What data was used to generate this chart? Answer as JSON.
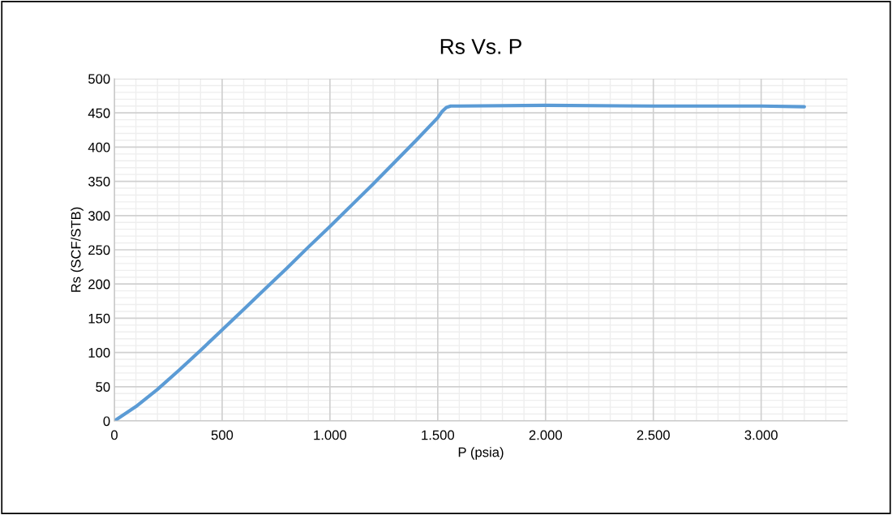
{
  "chart_data": {
    "type": "line",
    "title": "Rs Vs. P",
    "xlabel": "P (psia)",
    "ylabel": "Rs (SCF/STB)",
    "x": [
      0,
      100,
      200,
      300,
      400,
      500,
      600,
      700,
      800,
      900,
      1000,
      1100,
      1200,
      1300,
      1400,
      1500,
      1520,
      1540,
      1560,
      1600,
      2000,
      2500,
      3000,
      3200
    ],
    "series": [
      {
        "color": "#5b9bd5",
        "values": [
          0,
          21,
          46,
          74,
          103,
          133,
          163,
          193,
          223,
          254,
          284,
          315,
          346,
          378,
          410,
          443,
          452,
          458,
          460,
          460,
          461,
          460,
          460,
          459
        ]
      }
    ],
    "xlim": [
      0,
      3400
    ],
    "xticks": [
      0,
      {
        "value": 100,
        "label": null
      },
      {
        "value": 200,
        "label": null
      },
      {
        "value": 300,
        "label": null
      },
      {
        "value": 400,
        "label": null
      },
      500,
      {
        "value": 600,
        "label": null
      },
      {
        "value": 700,
        "label": null
      },
      {
        "value": 800,
        "label": null
      },
      {
        "value": 900,
        "label": null
      },
      {
        "value": 1000,
        "label": "1.000"
      },
      {
        "value": 1100,
        "label": null
      },
      {
        "value": 1200,
        "label": null
      },
      {
        "value": 1300,
        "label": null
      },
      {
        "value": 1400,
        "label": null
      },
      {
        "value": 1500,
        "label": "1.500"
      },
      {
        "value": 1600,
        "label": null
      },
      {
        "value": 1700,
        "label": null
      },
      {
        "value": 1800,
        "label": null
      },
      {
        "value": 1900,
        "label": null
      },
      {
        "value": 2000,
        "label": "2.000"
      },
      {
        "value": 2100,
        "label": null
      },
      {
        "value": 2200,
        "label": null
      },
      {
        "value": 2300,
        "label": null
      },
      {
        "value": 2400,
        "label": null
      },
      {
        "value": 2500,
        "label": "2.500"
      },
      {
        "value": 2600,
        "label": null
      },
      {
        "value": 2700,
        "label": null
      },
      {
        "value": 2800,
        "label": null
      },
      {
        "value": 2900,
        "label": null
      },
      {
        "value": 3000,
        "label": "3.000"
      },
      {
        "value": 3100,
        "label": null
      },
      {
        "value": 3200,
        "label": null
      },
      {
        "value": 3300,
        "label": null
      },
      {
        "value": 3400,
        "label": null
      }
    ],
    "ylim": [
      0,
      500
    ],
    "yticks": [
      0,
      {
        "value": 10,
        "label": null
      },
      {
        "value": 20,
        "label": null
      },
      {
        "value": 30,
        "label": null
      },
      {
        "value": 40,
        "label": null
      },
      50,
      {
        "value": 60,
        "label": null
      },
      {
        "value": 70,
        "label": null
      },
      {
        "value": 80,
        "label": null
      },
      {
        "value": 90,
        "label": null
      },
      100,
      {
        "value": 110,
        "label": null
      },
      {
        "value": 120,
        "label": null
      },
      {
        "value": 130,
        "label": null
      },
      {
        "value": 140,
        "label": null
      },
      150,
      {
        "value": 160,
        "label": null
      },
      {
        "value": 170,
        "label": null
      },
      {
        "value": 180,
        "label": null
      },
      {
        "value": 190,
        "label": null
      },
      200,
      {
        "value": 210,
        "label": null
      },
      {
        "value": 220,
        "label": null
      },
      {
        "value": 230,
        "label": null
      },
      {
        "value": 240,
        "label": null
      },
      250,
      {
        "value": 260,
        "label": null
      },
      {
        "value": 270,
        "label": null
      },
      {
        "value": 280,
        "label": null
      },
      {
        "value": 290,
        "label": null
      },
      300,
      {
        "value": 310,
        "label": null
      },
      {
        "value": 320,
        "label": null
      },
      {
        "value": 330,
        "label": null
      },
      {
        "value": 340,
        "label": null
      },
      350,
      {
        "value": 360,
        "label": null
      },
      {
        "value": 370,
        "label": null
      },
      {
        "value": 380,
        "label": null
      },
      {
        "value": 390,
        "label": null
      },
      400,
      {
        "value": 410,
        "label": null
      },
      {
        "value": 420,
        "label": null
      },
      {
        "value": 430,
        "label": null
      },
      {
        "value": 440,
        "label": null
      },
      450,
      {
        "value": 460,
        "label": null
      },
      {
        "value": 470,
        "label": null
      },
      {
        "value": 480,
        "label": null
      },
      {
        "value": 490,
        "label": null
      },
      500
    ],
    "grid": true,
    "marker": "none",
    "line_style": "solid"
  }
}
